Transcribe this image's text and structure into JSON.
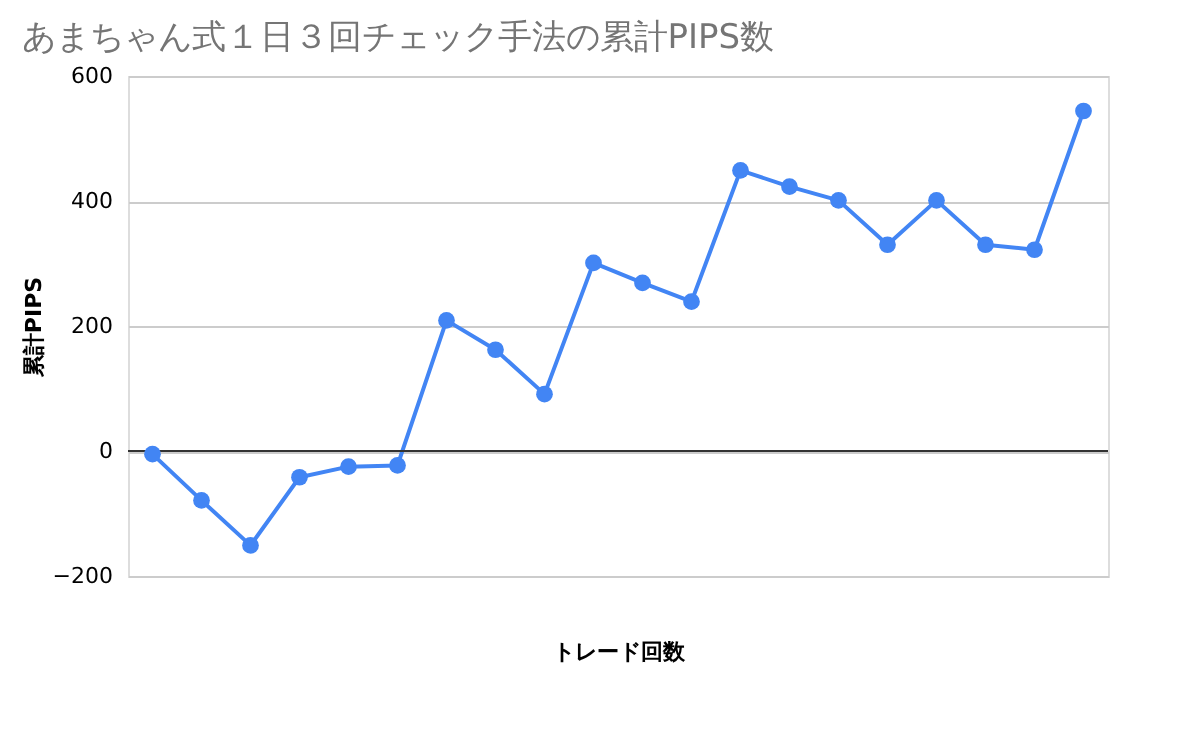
{
  "chart_data": {
    "type": "line",
    "title": "あまちゃん式１日３回チェック手法の累計PIPS数",
    "xlabel": "トレード回数",
    "ylabel": "累計PIPS",
    "categories": [
      null,
      null,
      null,
      null,
      null,
      null,
      null,
      null,
      null,
      null,
      null,
      null,
      null,
      null,
      null,
      null,
      null,
      null,
      null,
      null
    ],
    "series": [
      {
        "color": "#4285f4",
        "values": [
          -5,
          -79,
          -151,
          -42,
          -25,
          -23,
          209,
          162,
          91,
          301,
          269,
          239,
          449,
          423,
          401,
          330,
          401,
          330,
          322,
          544
        ]
      }
    ],
    "ylim": [
      -200,
      600
    ],
    "yticks": [
      -200,
      0,
      200,
      400,
      600
    ],
    "grid": "y",
    "marker": "circle",
    "line_style": "solid"
  }
}
